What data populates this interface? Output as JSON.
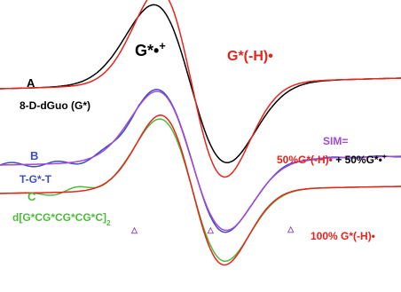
{
  "chart_data": {
    "type": "line",
    "title": "",
    "xlabel": "",
    "ylabel": "",
    "grid": false,
    "legend": "none",
    "x_range": [
      0,
      1
    ],
    "panels": [
      {
        "id": "A",
        "letter": "A",
        "label_parts": [
          {
            "text": "8-D-dGuo (G*)",
            "sup": ""
          }
        ],
        "series": [
          {
            "name": "G*•+",
            "color": "#000000",
            "center": 0.475,
            "amp": 1.0,
            "width": 0.092
          },
          {
            "name": "G*(-H)•",
            "color": "#e8231c",
            "center": 0.478,
            "amp": 1.18,
            "width": 0.083
          }
        ]
      },
      {
        "id": "B",
        "letter": "B",
        "label_parts": [
          {
            "text": "T-G*-T",
            "sup": ""
          }
        ],
        "series": [
          {
            "name": "B",
            "color": "#3a4fc8",
            "center": 0.478,
            "amp": 0.92,
            "width": 0.086
          },
          {
            "name": "SIM",
            "color": "#a24ad0",
            "center": 0.478,
            "amp": 0.9,
            "width": 0.087
          }
        ]
      },
      {
        "id": "C",
        "letter": "C",
        "label_parts": [
          {
            "text": "d[G*CG*CG*CG*C]",
            "sup": ""
          },
          {
            "text": "2",
            "sub": true
          }
        ],
        "series": [
          {
            "name": "C",
            "color": "#4cbc3a",
            "center": 0.48,
            "amp": 0.95,
            "width": 0.082
          },
          {
            "name": "100% G*(-H)•",
            "color": "#e8231c",
            "center": 0.48,
            "amp": 1.0,
            "width": 0.08
          }
        ]
      }
    ],
    "annotations": [
      {
        "id": "g-cation",
        "color": "#000000",
        "parts": [
          {
            "t": "G*•"
          },
          {
            "t": "+",
            "sup": true
          }
        ]
      },
      {
        "id": "g-radical",
        "color": "#e8231c",
        "parts": [
          {
            "t": "G*(-H)•"
          }
        ]
      },
      {
        "id": "sim-label",
        "color": "#a24ad0",
        "parts": [
          {
            "t": "SIM="
          }
        ]
      },
      {
        "id": "sim-composition",
        "color": "#e8231c",
        "parts": [
          {
            "t": "50%G*(-H)•",
            "color": "#e8231c"
          },
          {
            "t": " + 50%G*•",
            "color": "#000000"
          },
          {
            "t": "+",
            "sup": true,
            "color": "#000000"
          }
        ]
      },
      {
        "id": "pure-radical",
        "color": "#e8231c",
        "parts": [
          {
            "t": "100% G*(-H)•"
          }
        ]
      }
    ],
    "markers": {
      "symbol": "△",
      "color": "#8a3fb5",
      "x": [
        0.335,
        0.525,
        0.725
      ]
    }
  }
}
